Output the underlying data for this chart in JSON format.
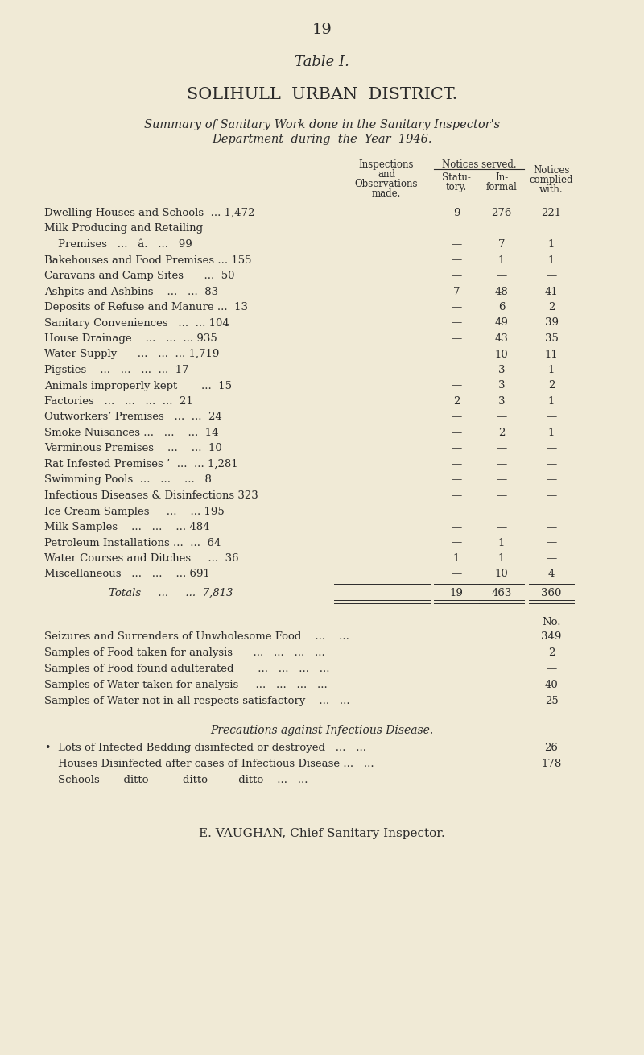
{
  "page_number": "19",
  "table_title": "Table I.",
  "district_title": "SOLIHULL  URBAN  DISTRICT.",
  "subtitle_line1": "Summary of Sanitary Work done in the Sanitary Inspector's",
  "subtitle_line2": "Department  during  the  Year  1946.",
  "table_rows": [
    {
      "label": "Dwelling Houses and Schools  ... 1,472",
      "col2": "9",
      "col3": "276",
      "col4": "221"
    },
    {
      "label": "Milk Producing and Retailing",
      "col2": "",
      "col3": "",
      "col4": ""
    },
    {
      "label": "    Premises   ...   â.   ...   99",
      "col2": "—",
      "col3": "7",
      "col4": "1"
    },
    {
      "label": "Bakehouses and Food Premises ... 155",
      "col2": "—",
      "col3": "1",
      "col4": "1"
    },
    {
      "label": "Caravans and Camp Sites      ...  50",
      "col2": "—",
      "col3": "—",
      "col4": "—"
    },
    {
      "label": "Ashpits and Ashbins    ...   ...  83",
      "col2": "7",
      "col3": "48",
      "col4": "41"
    },
    {
      "label": "Deposits of Refuse and Manure ...  13",
      "col2": "—",
      "col3": "6",
      "col4": "2"
    },
    {
      "label": "Sanitary Conveniences   ...  ... 104",
      "col2": "—",
      "col3": "49",
      "col4": "39"
    },
    {
      "label": "House Drainage    ...   ...  ... 935",
      "col2": "—",
      "col3": "43",
      "col4": "35"
    },
    {
      "label": "Water Supply      ...   ...  ... 1,719",
      "col2": "—",
      "col3": "10",
      "col4": "11"
    },
    {
      "label": "Pigsties    ...   ...   ...  ...  17",
      "col2": "—",
      "col3": "3",
      "col4": "1"
    },
    {
      "label": "Animals improperly kept       ...  15",
      "col2": "—",
      "col3": "3",
      "col4": "2"
    },
    {
      "label": "Factories   ...   ...   ...  ...  21",
      "col2": "2",
      "col3": "3",
      "col4": "1"
    },
    {
      "label": "Outworkers’ Premises   ...  ...  24",
      "col2": "—",
      "col3": "—",
      "col4": "—"
    },
    {
      "label": "Smoke Nuisances ...   ...    ...  14",
      "col2": "—",
      "col3": "2",
      "col4": "1"
    },
    {
      "label": "Verminous Premises    ...    ...  10",
      "col2": "—",
      "col3": "—",
      "col4": "—"
    },
    {
      "label": "Rat Infested Premises ’  ...  ... 1,281",
      "col2": "—",
      "col3": "—",
      "col4": "—"
    },
    {
      "label": "Swimming Pools  ...   ...    ...   8",
      "col2": "—",
      "col3": "—",
      "col4": "—"
    },
    {
      "label": "Infectious Diseases & Disinfections 323",
      "col2": "—",
      "col3": "—",
      "col4": "—"
    },
    {
      "label": "Ice Cream Samples     ...    ... 195",
      "col2": "—",
      "col3": "—",
      "col4": "—"
    },
    {
      "label": "Milk Samples    ...   ...    ... 484",
      "col2": "—",
      "col3": "—",
      "col4": "—"
    },
    {
      "label": "Petroleum Installations ...  ...  64",
      "col2": "—",
      "col3": "1",
      "col4": "—"
    },
    {
      "label": "Water Courses and Ditches     ...  36",
      "col2": "1",
      "col3": "1",
      "col4": "—"
    },
    {
      "label": "Miscellaneous   ...   ...    ... 691",
      "col2": "—",
      "col3": "10",
      "col4": "4"
    }
  ],
  "totals_label": "Totals     ...     ...  7,813",
  "totals_col2": "19",
  "totals_col3": "463",
  "totals_col4": "360",
  "extra_section_header": "No.",
  "extra_rows": [
    {
      "label": "Seizures and Surrenders of Unwholesome Food    ...    ...",
      "value": "349"
    },
    {
      "label": "Samples of Food taken for analysis      ...   ...   ...   ...",
      "value": "2"
    },
    {
      "label": "Samples of Food found adulterated       ...   ...   ...   ...",
      "value": "—"
    },
    {
      "label": "Samples of Water taken for analysis     ...   ...   ...   ...",
      "value": "40"
    },
    {
      "label": "Samples of Water not in all respects satisfactory    ...   ...",
      "value": "25"
    }
  ],
  "precautions_title": "Precautions against Infectious Disease.",
  "precautions_rows": [
    {
      "label": "Lots of Infected Bedding disinfected or destroyed   ...   ...",
      "value": "26",
      "bullet": true
    },
    {
      "label": "Houses Disinfected after cases of Infectious Disease ...   ...",
      "value": "178",
      "bullet": false
    },
    {
      "label": "Schools       ditto          ditto         ditto    ...   ...",
      "value": "—",
      "bullet": false
    }
  ],
  "footer": "E. VAUGHAN, Chief Sanitary Inspector.",
  "bg_color": "#f0ead6",
  "text_color": "#2a2a2a"
}
